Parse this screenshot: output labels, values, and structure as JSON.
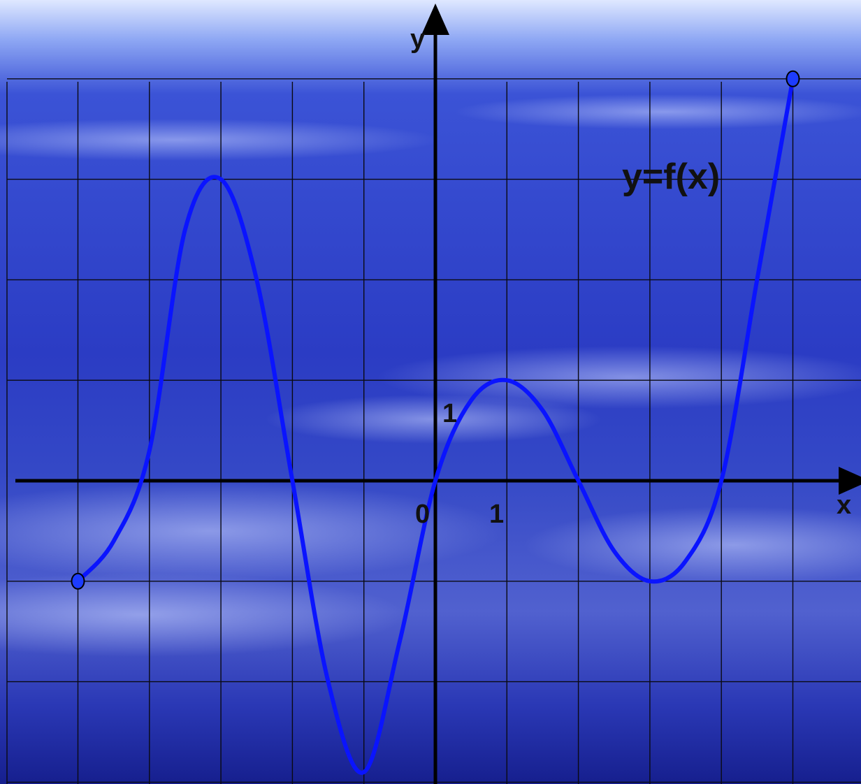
{
  "chart_data": {
    "type": "line",
    "title": "",
    "xlabel": "x",
    "ylabel": "y",
    "origin_label": "0",
    "x_tick_label": "1",
    "y_tick_label": "1",
    "xlim": [
      -6,
      6
    ],
    "ylim": [
      -3,
      4
    ],
    "grid": true,
    "series": [
      {
        "name": "y=f(x)",
        "color": "#0a14ff",
        "points": [
          [
            -5,
            -1
          ],
          [
            -4.5,
            -0.6
          ],
          [
            -4,
            0.3
          ],
          [
            -3.5,
            2.5
          ],
          [
            -3,
            3
          ],
          [
            -2.5,
            2.0
          ],
          [
            -2,
            0
          ],
          [
            -1.5,
            -2.0
          ],
          [
            -1,
            -2.9
          ],
          [
            -0.5,
            -1.6
          ],
          [
            0,
            0
          ],
          [
            0.5,
            0.8
          ],
          [
            1,
            1
          ],
          [
            1.5,
            0.7
          ],
          [
            2,
            0
          ],
          [
            2.5,
            -0.7
          ],
          [
            3,
            -1
          ],
          [
            3.5,
            -0.8
          ],
          [
            4,
            0
          ],
          [
            4.5,
            2.0
          ],
          [
            5,
            4
          ]
        ],
        "endpoints": [
          [
            -5,
            -1
          ],
          [
            5,
            4
          ]
        ]
      }
    ],
    "colors": {
      "axis": "#000000",
      "grid": "#0a0a12",
      "endpoint_fill": "#1d3cff"
    }
  }
}
